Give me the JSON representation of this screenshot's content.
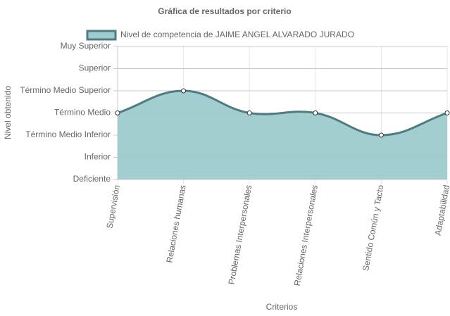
{
  "chart_data": {
    "type": "line",
    "title": "Gráfica de resultados por criterio",
    "x_label": "Criterios",
    "y_label": "Nivel obtenido",
    "categories": [
      "Supervisión",
      "Relaciones humanas",
      "Problemas Interpersonales",
      "Relaciones Interpersonales",
      "Sentido Común y Tacto",
      "Adaptabilidad"
    ],
    "series": [
      {
        "name": "Nivel de competencia de JAIME ANGEL ALVARADO JURADO",
        "color": "#4e7c80",
        "fill": "#9ecbce",
        "values": [
          3,
          4,
          3,
          3,
          2,
          3
        ]
      }
    ],
    "ylim": [
      0,
      6
    ],
    "yticks": [
      {
        "value": 0,
        "label": "Deficiente"
      },
      {
        "value": 1,
        "label": "Inferior"
      },
      {
        "value": 2,
        "label": "Término Medio Inferior"
      },
      {
        "value": 3,
        "label": "Término Medio"
      },
      {
        "value": 4,
        "label": "Término Medio Superior"
      },
      {
        "value": 5,
        "label": "Superior"
      },
      {
        "value": 6,
        "label": "Muy Superior"
      }
    ],
    "grid": true
  }
}
